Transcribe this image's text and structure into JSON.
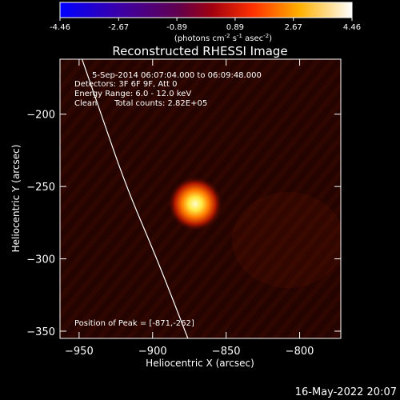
{
  "colorbar": {
    "ticks": [
      "-4.46",
      "-2.67",
      "-0.89",
      "0.89",
      "2.67",
      "4.46"
    ],
    "tick_values": [
      -4.46,
      -2.67,
      -0.89,
      0.89,
      2.67,
      4.46
    ],
    "units_html": "(photons cm<tspan baseline-shift='super' font-size='7'>-2</tspan> s<tspan baseline-shift='super' font-size='7'>-1</tspan> asec<tspan baseline-shift='super' font-size='7'>-2</tspan>)",
    "colormap": "blue-purple-red-yellow-white"
  },
  "chart_data": {
    "type": "heatmap",
    "title": "Reconstructed RHESSI Image",
    "xlabel": "Heliocentric X (arcsec)",
    "ylabel": "Heliocentric Y (arcsec)",
    "xlim": [
      -963,
      -772
    ],
    "ylim": [
      -355,
      -162
    ],
    "x_ticks": [
      -950,
      -900,
      -850,
      -800
    ],
    "x_tick_labels": [
      "−950",
      "−900",
      "−850",
      "−800"
    ],
    "y_ticks": [
      -200,
      -250,
      -300,
      -350
    ],
    "y_tick_labels": [
      "−200",
      "−250",
      "−300",
      "−350"
    ],
    "peak": {
      "x": -871,
      "y": -262
    },
    "limb_curve": [
      [
        -948,
        -162
      ],
      [
        -935,
        -200
      ],
      [
        -918,
        -250
      ],
      [
        -897,
        -300
      ],
      [
        -876,
        -355
      ]
    ],
    "grid": false,
    "annotations": {
      "time": "5-Sep-2014 06:07:04.000 to 06:09:48.000",
      "detectors": "Detectors: 3F 6F 9F, Att 0",
      "energy": "Energy Range: 6.0 - 12.0 keV",
      "method": "Clean",
      "counts": "Total counts: 2.82E+05",
      "peak_label": "Position of Peak = [-871,-262]"
    }
  },
  "footer": {
    "date": "16-May-2022 20:07"
  }
}
